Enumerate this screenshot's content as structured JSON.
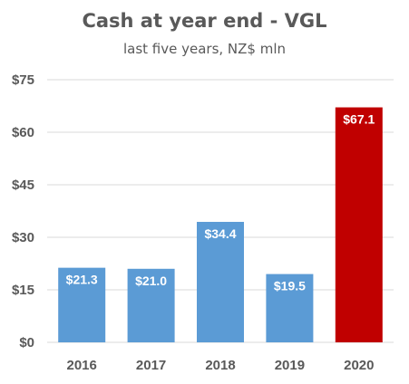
{
  "chart_data": {
    "type": "bar",
    "title": "Cash at year end - VGL",
    "subtitle": "last five years, NZ$ mln",
    "categories": [
      "2016",
      "2017",
      "2018",
      "2019",
      "2020"
    ],
    "values": [
      21.3,
      21.0,
      34.4,
      19.5,
      67.1
    ],
    "data_labels": [
      "$21.3",
      "$21.0",
      "$34.4",
      "$19.5",
      "$67.1"
    ],
    "ylim": [
      0,
      75
    ],
    "yticks": [
      0,
      15,
      30,
      45,
      60,
      75
    ],
    "ytick_labels": [
      "$0",
      "$15",
      "$30",
      "$45",
      "$60",
      "$75"
    ],
    "grid": true,
    "legend": "none",
    "colors": {
      "default_bar": "#5B9BD5",
      "highlight_bar": "#C00000",
      "highlight_index": 4,
      "gridline": "#D9D9D9",
      "text": "#595959"
    }
  }
}
